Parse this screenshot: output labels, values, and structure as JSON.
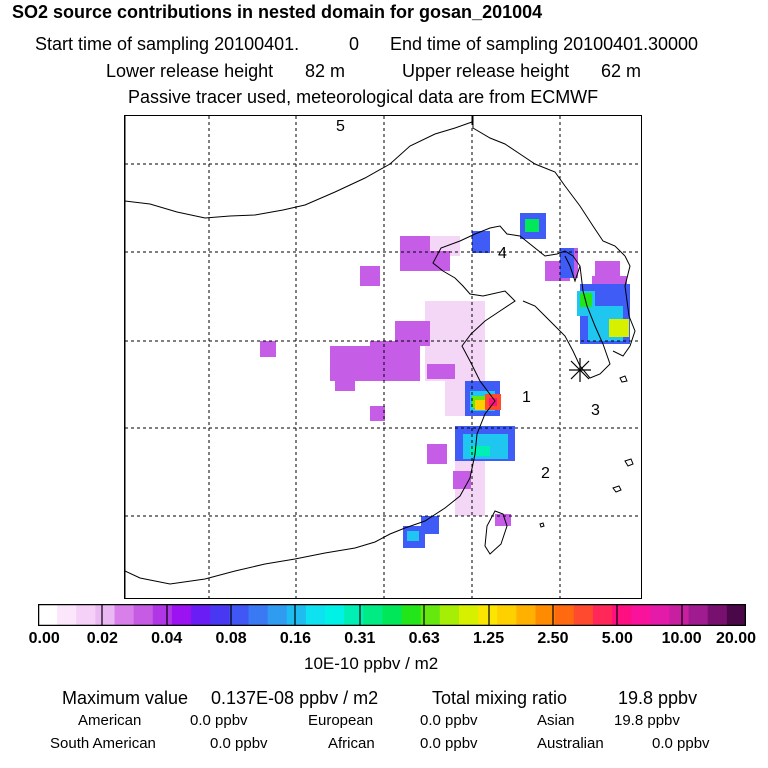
{
  "header": {
    "title": "SO2 source contributions in nested domain for gosan_201004",
    "start_label": "Start time of sampling 20100401.",
    "start_value": "0",
    "end_label": "End time of sampling 20100401.",
    "end_value": "30000",
    "lower_label": "Lower release height",
    "lower_value": "82 m",
    "upper_label": "Upper release height",
    "upper_value": "62 m",
    "tracer_note": "Passive tracer used, meteorological data are from ECMWF"
  },
  "map": {
    "region_labels": [
      "1",
      "2",
      "3",
      "4",
      "5"
    ]
  },
  "colorbar": {
    "ticks": [
      "0.00",
      "0.02",
      "0.04",
      "0.08",
      "0.16",
      "0.31",
      "0.63",
      "1.25",
      "2.50",
      "5.00",
      "10.00",
      "20.00"
    ],
    "colors": [
      "#ffffff",
      "#fbe6fb",
      "#f5d1f7",
      "#eab8f2",
      "#d97fe9",
      "#c65ce4",
      "#b036e6",
      "#9a13f0",
      "#6a1ef5",
      "#4838f2",
      "#4056f5",
      "#3a79f4",
      "#2f9cf2",
      "#1ebcf0",
      "#0ee1f0",
      "#00f2e6",
      "#00efb4",
      "#00eb84",
      "#00e85a",
      "#22e61a",
      "#66e80e",
      "#a6ee06",
      "#d6f000",
      "#fae600",
      "#ffd000",
      "#ffb000",
      "#ff8c00",
      "#ff6a10",
      "#ff4a30",
      "#ff2858",
      "#ff1080",
      "#f8129c",
      "#e41ba8",
      "#c81ea0",
      "#a01a90",
      "#781070",
      "#4a0848"
    ],
    "unit": "10E-10 ppbv / m2"
  },
  "stats": {
    "max_label": "Maximum value",
    "max_value": "0.137E-08 ppbv / m2",
    "total_label": "Total mixing ratio",
    "total_value": "19.8 ppbv",
    "regions": [
      {
        "name": "American",
        "value": "0.0 ppbv"
      },
      {
        "name": "European",
        "value": "0.0 ppbv"
      },
      {
        "name": "Asian",
        "value": "19.8 ppbv"
      },
      {
        "name": "South American",
        "value": "0.0 ppbv"
      },
      {
        "name": "African",
        "value": "0.0 ppbv"
      },
      {
        "name": "Australian",
        "value": "0.0 ppbv"
      }
    ]
  }
}
